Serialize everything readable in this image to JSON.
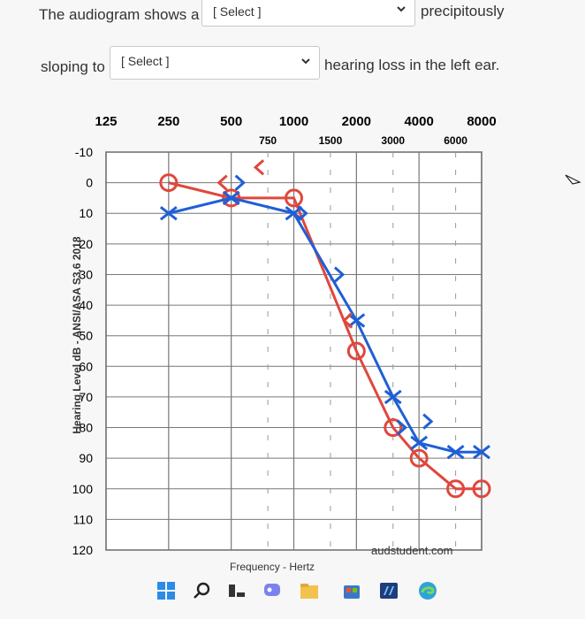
{
  "question": {
    "line1_prefix": "The audiogram shows a",
    "line1_suffix": "precipitously",
    "line2_prefix": "sloping to",
    "line2_suffix": "hearing loss in the left ear.",
    "select1_value": "[ Select ]",
    "select2_value": "[ Select ]"
  },
  "audiogram": {
    "freq_top": [
      "125",
      "250",
      "500",
      "1000",
      "2000",
      "4000",
      "8000"
    ],
    "freq_mid": [
      "750",
      "1500",
      "3000",
      "6000"
    ],
    "levels": [
      "-10",
      "0",
      "10",
      "20",
      "30",
      "40",
      "50",
      "60",
      "70",
      "80",
      "90",
      "100",
      "110",
      "120"
    ],
    "ylabel": "Hearing Level dB - ANSI/ASA S3.6 2018",
    "xlabel": "Frequency - Hertz",
    "watermark": "audstudent.com",
    "colors": {
      "right_ear": "#e0473c",
      "left_ear": "#1f5fd6",
      "grid": "#666666"
    }
  },
  "chart_data": {
    "type": "line",
    "xscale": "log",
    "xlabel": "Frequency - Hertz",
    "ylabel": "Hearing Level dB - ANSI/ASA S3.6 2018",
    "xlim": [
      125,
      8000
    ],
    "ylim": [
      -10,
      120
    ],
    "y_inverted": true,
    "series": [
      {
        "marker": "circle",
        "color": "#e0473c",
        "x": [
          250,
          500,
          1000,
          2000,
          3000,
          4000,
          6000,
          8000
        ],
        "y": [
          0,
          5,
          5,
          55,
          80,
          90,
          100,
          100
        ]
      },
      {
        "marker": "x",
        "color": "#1f5fd6",
        "x": [
          250,
          500,
          1000,
          2000,
          3000,
          4000,
          6000,
          8000
        ],
        "y": [
          10,
          5,
          10,
          45,
          70,
          85,
          88,
          88
        ]
      }
    ],
    "bone_right": {
      "marker": "<",
      "color": "#e0473c",
      "x": [
        500,
        750,
        2000
      ],
      "y": [
        0,
        -5,
        45
      ]
    },
    "bone_left": {
      "marker": ">",
      "color": "#1f5fd6",
      "x": [
        500,
        1000,
        1500,
        3000,
        4000
      ],
      "y": [
        0,
        10,
        30,
        80,
        78
      ]
    }
  },
  "taskbar": {
    "icons": [
      "windows-start-icon",
      "search-icon",
      "task-view-icon",
      "chat-icon",
      "file-explorer-icon",
      "store-icon",
      "app-icon",
      "edge-icon"
    ]
  }
}
